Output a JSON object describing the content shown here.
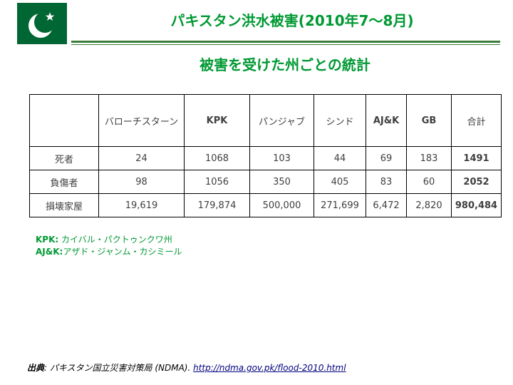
{
  "slide": {
    "title": "パキスタン洪水被害(2010年7～8月)",
    "subtitle": "被害を受けた州ごとの統計"
  },
  "flag": {
    "colors": {
      "green": "#006633",
      "white": "#ffffff"
    }
  },
  "table": {
    "headers": [
      "",
      "バローチスターン",
      "KPK",
      "パンジャブ",
      "シンド",
      "AJ&K",
      "GB",
      "合計"
    ],
    "rows": [
      {
        "label": "死者",
        "values": [
          "24",
          "1068",
          "103",
          "44",
          "69",
          "183"
        ],
        "total": "1491"
      },
      {
        "label": "負傷者",
        "values": [
          "98",
          "1056",
          "350",
          "405",
          "83",
          "60"
        ],
        "total": "2052"
      },
      {
        "label": "損壊家屋",
        "values": [
          "19,619",
          "179,874",
          "500,000",
          "271,699",
          "6,472",
          "2,820"
        ],
        "total": "980,484"
      }
    ]
  },
  "notes": [
    {
      "abbr": "KPK:",
      "text": "カイバル・パクトゥンクワ州"
    },
    {
      "abbr": "AJ&K:",
      "text": "アザド・ジャンム・カシミール"
    }
  ],
  "source": {
    "label": "出典",
    "text": ": パキスタン国立災害対策局 (NDMA). ",
    "link": "http://ndma.gov.pk/flood-2010.html"
  },
  "colors": {
    "accent": "#009933",
    "rule": "#3a7d3a",
    "link": "#000080"
  }
}
